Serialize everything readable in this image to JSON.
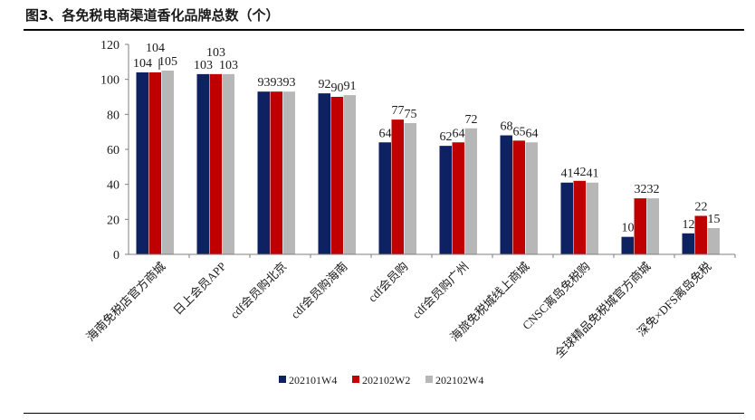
{
  "figure_title": "图3、各免税电商渠道香化品牌总数（个）",
  "colors": {
    "s1": "#0d2163",
    "s2": "#c00000",
    "s3": "#b7b7b7",
    "axis": "#7f7f7f"
  },
  "chart_data": {
    "type": "bar",
    "title": "",
    "xlabel": "",
    "ylabel": "",
    "ylim": [
      0,
      120
    ],
    "yticks": [
      0,
      20,
      40,
      60,
      80,
      100,
      120
    ],
    "grid": false,
    "legend_position": "bottom",
    "categories": [
      "海南免税店官方商城",
      "日上会员APP",
      "cdf会员购北京",
      "cdf会员购海南",
      "cdf会员购",
      "cdf会员购广州",
      "海旅免税城线上商城",
      "CNSC离岛免税购",
      "全球精品免税城官方商城",
      "深免×DFS离岛免税"
    ],
    "series": [
      {
        "name": "202101W4",
        "values": [
          104,
          103,
          93,
          92,
          64,
          62,
          68,
          41,
          10,
          12
        ]
      },
      {
        "name": "202102W2",
        "values": [
          104,
          103,
          93,
          90,
          77,
          64,
          65,
          42,
          32,
          22
        ]
      },
      {
        "name": "202102W4",
        "values": [
          105,
          103,
          93,
          91,
          75,
          72,
          64,
          41,
          32,
          15
        ]
      }
    ]
  }
}
